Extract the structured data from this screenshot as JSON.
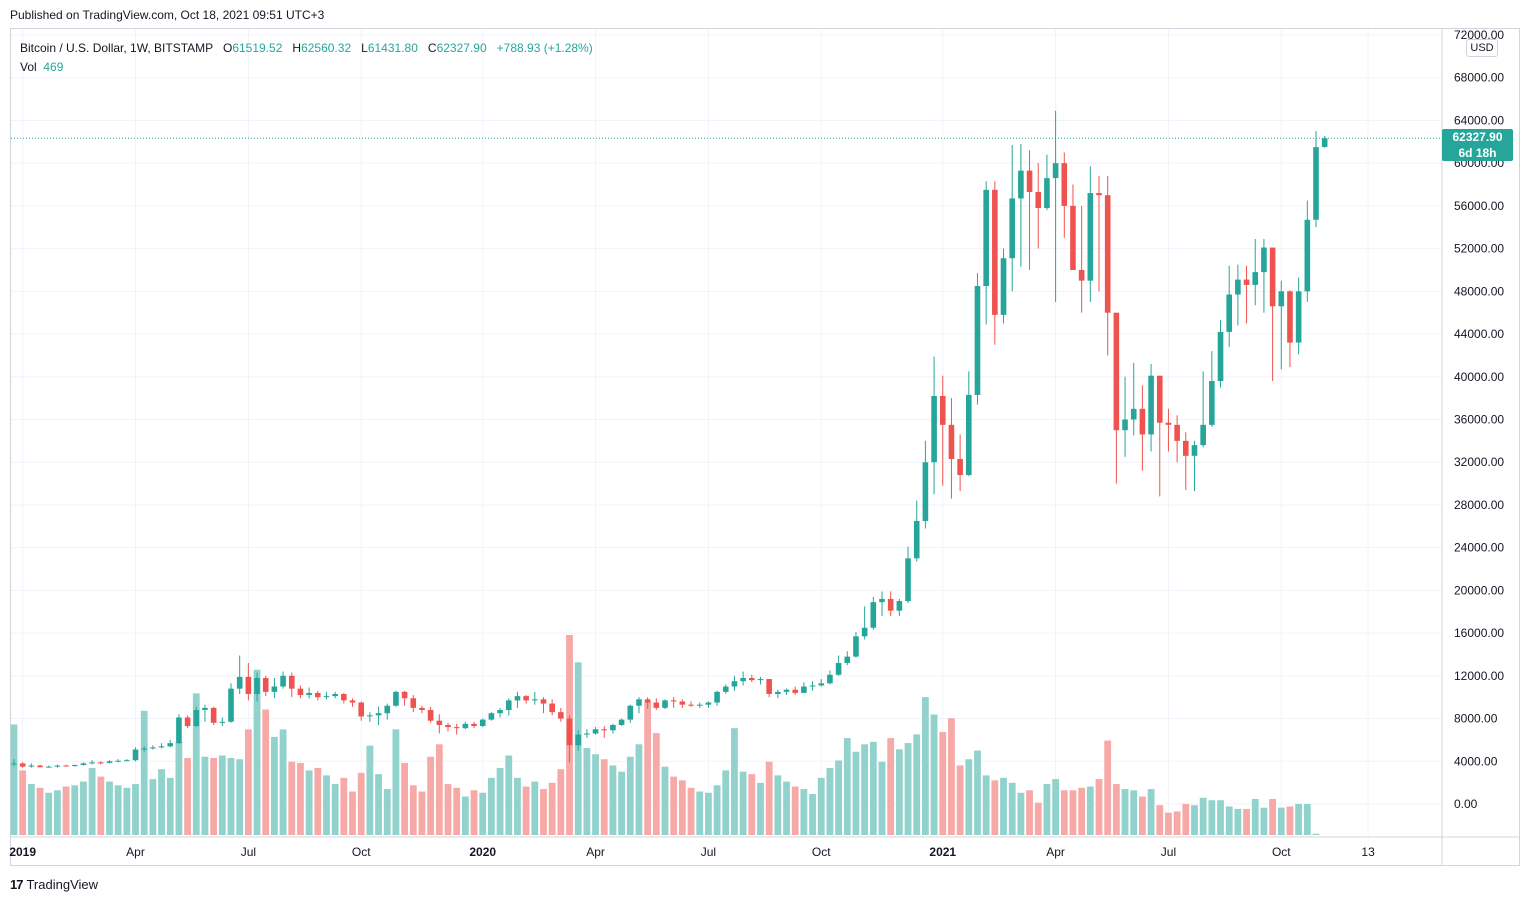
{
  "header": {
    "published_text": "Published on TradingView.com, Oct 18, 2021 09:51 UTC+3"
  },
  "legend": {
    "symbol": "Bitcoin / U.S. Dollar, 1W, BITSTAMP",
    "open_label": "O",
    "open_value": "61519.52",
    "high_label": "H",
    "high_value": "62560.32",
    "low_label": "L",
    "low_value": "61431.80",
    "close_label": "C",
    "close_value": "62327.90",
    "change": "+788.93 (+1.28%)",
    "vol_label": "Vol",
    "vol_value": "469"
  },
  "price_axis": {
    "currency_badge": "USD",
    "last_price": "62327.90",
    "countdown": "6d 18h"
  },
  "footer": {
    "brand": "TradingView",
    "logo_glyph": "17"
  },
  "colors": {
    "up": "#26a69a",
    "down": "#ef5350",
    "up_vol": "#92d2cc",
    "down_vol": "#f7a9a7",
    "grid": "#f0f3fa"
  },
  "chart_data": {
    "type": "candlestick",
    "title": "Bitcoin / U.S. Dollar, 1W, BITSTAMP",
    "ylim": [
      -3000,
      74000
    ],
    "y_ticks": [
      "72000.00",
      "68000.00",
      "64000.00",
      "60000.00",
      "56000.00",
      "52000.00",
      "48000.00",
      "44000.00",
      "40000.00",
      "36000.00",
      "32000.00",
      "28000.00",
      "24000.00",
      "20000.00",
      "16000.00",
      "12000.00",
      "8000.00",
      "4000.00",
      "0.00"
    ],
    "x_labels": [
      {
        "text": "2019",
        "bold": true,
        "week": 1
      },
      {
        "text": "Apr",
        "bold": false,
        "week": 14
      },
      {
        "text": "Jul",
        "bold": false,
        "week": 27
      },
      {
        "text": "Oct",
        "bold": false,
        "week": 40
      },
      {
        "text": "2020",
        "bold": true,
        "week": 54
      },
      {
        "text": "Apr",
        "bold": false,
        "week": 67
      },
      {
        "text": "Jul",
        "bold": false,
        "week": 80
      },
      {
        "text": "Oct",
        "bold": false,
        "week": 93
      },
      {
        "text": "2021",
        "bold": true,
        "week": 107
      },
      {
        "text": "Apr",
        "bold": false,
        "week": 120
      },
      {
        "text": "Jul",
        "bold": false,
        "week": 133
      },
      {
        "text": "Oct",
        "bold": false,
        "week": 146
      },
      {
        "text": "13",
        "bold": false,
        "week": 156
      }
    ],
    "closes": [
      3800,
      3500,
      3600,
      3450,
      3500,
      3600,
      3550,
      3650,
      3800,
      3900,
      3850,
      4000,
      4050,
      4100,
      5100,
      5200,
      5300,
      5400,
      5700,
      8100,
      7300,
      8800,
      9000,
      7600,
      7700,
      10800,
      11900,
      10300,
      11800,
      10500,
      11000,
      12000,
      10800,
      10200,
      10400,
      10000,
      10100,
      10300,
      9700,
      9500,
      8200,
      8300,
      8500,
      9200,
      10500,
      9900,
      9000,
      8800,
      7800,
      7400,
      7200,
      7100,
      7500,
      7300,
      7900,
      8500,
      8800,
      9700,
      10100,
      9700,
      9800,
      9400,
      8600,
      8000,
      5500,
      6500,
      6600,
      7000,
      6900,
      7400,
      7900,
      9200,
      9800,
      9500,
      9000,
      9700,
      9600,
      9300,
      9200,
      9300,
      9500,
      10500,
      11000,
      11500,
      11800,
      11600,
      11700,
      10300,
      10500,
      10700,
      10400,
      11000,
      11100,
      11300,
      12100,
      13200,
      13800,
      15700,
      16500,
      18900,
      19200,
      18100,
      19000,
      23000,
      26500,
      32000,
      38200,
      35500,
      32300,
      30800,
      38300,
      48500,
      57500,
      45800,
      51100,
      56700,
      59300,
      57300,
      55800,
      58600,
      60000,
      56000,
      50000,
      49000,
      57200,
      57000,
      46000,
      35000,
      36000,
      37000,
      34600,
      40100,
      35700,
      35500,
      34000,
      32600,
      33600,
      35500,
      39600,
      44200,
      47700,
      49100,
      48600,
      49800,
      52100,
      46600,
      48000,
      43200,
      48000,
      54700,
      61500,
      62328
    ],
    "opens": [
      3800,
      3800,
      3500,
      3600,
      3450,
      3500,
      3600,
      3550,
      3650,
      3800,
      3900,
      3850,
      4000,
      4050,
      4100,
      5100,
      5200,
      5300,
      5400,
      5700,
      8100,
      7300,
      8800,
      9000,
      7600,
      7700,
      10800,
      11900,
      10300,
      11800,
      10500,
      11000,
      12000,
      10800,
      10200,
      10400,
      10000,
      10100,
      10300,
      9700,
      9500,
      8200,
      8300,
      8500,
      9200,
      10500,
      9900,
      9000,
      8800,
      7800,
      7400,
      7200,
      7100,
      7500,
      7300,
      7900,
      8500,
      8800,
      9700,
      10100,
      9700,
      9800,
      9400,
      8600,
      8000,
      5500,
      6500,
      6600,
      7000,
      6900,
      7400,
      7900,
      9200,
      9800,
      9500,
      9000,
      9700,
      9600,
      9300,
      9200,
      9300,
      9500,
      10500,
      11000,
      11500,
      11800,
      11600,
      11700,
      10300,
      10500,
      10700,
      10400,
      11000,
      11100,
      11300,
      12100,
      13200,
      13800,
      15700,
      16500,
      18900,
      19200,
      18100,
      19000,
      23000,
      26500,
      32000,
      38200,
      35500,
      32300,
      30800,
      38300,
      48500,
      57500,
      45800,
      51100,
      56700,
      59300,
      57300,
      55800,
      58600,
      60000,
      56000,
      50000,
      49000,
      57200,
      57000,
      46000,
      35000,
      36000,
      37000,
      34600,
      40100,
      35700,
      35500,
      34000,
      32600,
      33600,
      35500,
      39600,
      44200,
      47700,
      49100,
      48600,
      49800,
      52100,
      46600,
      48000,
      43200,
      48000,
      54700,
      61520
    ],
    "highs": [
      4200,
      3900,
      3800,
      3700,
      3600,
      3700,
      3700,
      3700,
      3900,
      4100,
      4000,
      4100,
      4200,
      4200,
      5300,
      5400,
      5500,
      5700,
      6000,
      8400,
      8300,
      9100,
      9300,
      9100,
      8100,
      11300,
      13900,
      13200,
      12300,
      12000,
      11800,
      12400,
      12300,
      11100,
      10900,
      10600,
      10500,
      10500,
      10400,
      9900,
      9600,
      8600,
      9100,
      9400,
      10600,
      10600,
      10200,
      9200,
      9100,
      8400,
      7600,
      7500,
      7700,
      7700,
      8000,
      8600,
      9000,
      9900,
      10500,
      10200,
      10500,
      10000,
      9800,
      9000,
      8300,
      6900,
      7000,
      7200,
      7300,
      7500,
      8000,
      9300,
      10000,
      10000,
      9900,
      9800,
      10000,
      9800,
      9600,
      9500,
      9600,
      10600,
      11200,
      12000,
      12400,
      12100,
      11900,
      11700,
      10700,
      10800,
      11000,
      11400,
      11500,
      11700,
      12500,
      13900,
      14300,
      16100,
      18500,
      19400,
      19900,
      19900,
      19200,
      24100,
      28400,
      34000,
      41900,
      40100,
      38000,
      34600,
      40500,
      49700,
      58300,
      58300,
      52000,
      61700,
      61800,
      61200,
      60000,
      60800,
      64900,
      61000,
      58000,
      56000,
      59700,
      58800,
      58800,
      43900,
      40000,
      41300,
      39200,
      41200,
      36600,
      37000,
      36400,
      34800,
      34000,
      40500,
      42400,
      45300,
      50400,
      50500,
      50400,
      52900,
      52900,
      48800,
      49000,
      48100,
      49300,
      56500,
      63000,
      62560
    ],
    "lows": [
      3500,
      3400,
      3400,
      3400,
      3400,
      3400,
      3500,
      3500,
      3600,
      3700,
      3700,
      3800,
      3900,
      4000,
      4000,
      4900,
      5100,
      5200,
      5300,
      5600,
      7100,
      7200,
      7700,
      7400,
      7300,
      7600,
      10300,
      9700,
      9600,
      10100,
      9900,
      10800,
      10000,
      9900,
      9900,
      9700,
      9800,
      9900,
      9400,
      9100,
      7800,
      7700,
      7400,
      7900,
      9100,
      9200,
      8600,
      8500,
      7600,
      6600,
      6800,
      6500,
      7000,
      7100,
      7200,
      7800,
      8100,
      8300,
      9000,
      9400,
      9300,
      8500,
      8300,
      7700,
      3900,
      5000,
      6200,
      6500,
      6200,
      6600,
      7300,
      7600,
      8500,
      8900,
      8800,
      8900,
      9000,
      9000,
      9100,
      9000,
      9000,
      9200,
      10300,
      10600,
      11100,
      11400,
      11200,
      10000,
      9900,
      10200,
      10200,
      10400,
      10600,
      11000,
      11200,
      12000,
      13000,
      13700,
      15400,
      16300,
      17600,
      17600,
      17600,
      18800,
      22700,
      25800,
      29000,
      29800,
      28600,
      29300,
      30700,
      37400,
      44900,
      43000,
      45000,
      48000,
      50300,
      50000,
      52000,
      55600,
      47000,
      53000,
      51000,
      46000,
      47000,
      48000,
      42000,
      30000,
      32500,
      34500,
      31200,
      33000,
      28800,
      33000,
      32000,
      29400,
      29300,
      33400,
      35300,
      39000,
      42800,
      44800,
      45000,
      46700,
      46000,
      39600,
      40700,
      40900,
      42100,
      47000,
      54000,
      61431
    ],
    "volumes": [
      8900,
      5200,
      4100,
      3800,
      3400,
      3600,
      3900,
      4000,
      4300,
      5400,
      4700,
      4300,
      4000,
      3800,
      4100,
      10000,
      4500,
      5300,
      4600,
      7500,
      6200,
      11400,
      6300,
      6200,
      6400,
      6200,
      6100,
      8500,
      13300,
      10100,
      7900,
      8500,
      5900,
      5800,
      5200,
      5400,
      4800,
      4100,
      4600,
      3500,
      5000,
      7200,
      4900,
      3700,
      8500,
      5800,
      4000,
      3500,
      6300,
      7300,
      4100,
      3800,
      3100,
      3600,
      3400,
      4600,
      5400,
      6400,
      4600,
      3900,
      4300,
      3700,
      4200,
      5300,
      16100,
      13900,
      7000,
      6500,
      6100,
      5600,
      5100,
      6300,
      7300,
      10700,
      8200,
      5500,
      4700,
      4400,
      3800,
      3500,
      3400,
      4000,
      5200,
      8600,
      5100,
      4900,
      4200,
      5900,
      4800,
      4300,
      3900,
      3700,
      3300,
      4600,
      5400,
      6000,
      7800,
      6700,
      7300,
      7500,
      5900,
      7800,
      6900,
      7400,
      8100,
      11100,
      9700,
      8300,
      9400,
      5600,
      6100,
      6800,
      4800,
      4400,
      4600,
      4200,
      3400,
      3600,
      2600,
      4100,
      4500,
      3600,
      3600,
      3800,
      3900,
      4500,
      7600,
      4100,
      3700,
      3600,
      3100,
      3700,
      2400,
      1800,
      1900,
      2500,
      2400,
      3000,
      2800,
      2800,
      2300,
      2100,
      2100,
      2900,
      2200,
      2900,
      2200,
      2300,
      2500,
      2500,
      100
    ]
  }
}
